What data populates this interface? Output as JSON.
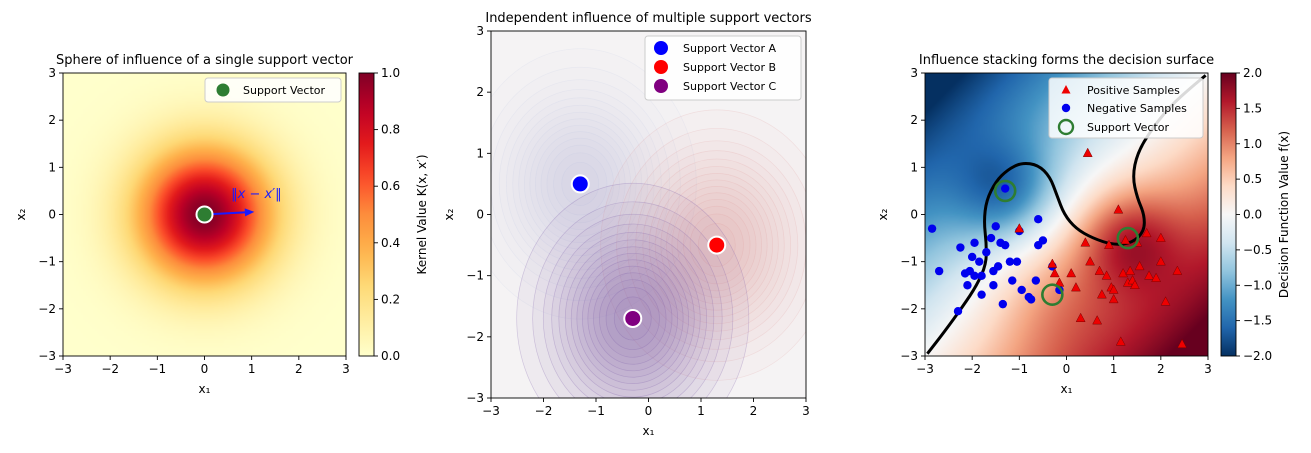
{
  "chart_data": [
    {
      "type": "heatmap",
      "title": "Sphere of influence of a single support vector",
      "xlabel": "x₁",
      "ylabel": "x₂",
      "xlim": [
        -3,
        3
      ],
      "ylim": [
        -3,
        3
      ],
      "xticks": [
        "−3",
        "−2",
        "−1",
        "0",
        "1",
        "2",
        "3"
      ],
      "yticks": [
        "−3",
        "−2",
        "−1",
        "0",
        "1",
        "2",
        "3"
      ],
      "colormap": "YlOrRd",
      "colorbar": {
        "label": "Kernel Value K(x, x′)",
        "range": [
          0,
          1
        ],
        "ticks": [
          "0.0",
          "0.2",
          "0.4",
          "0.6",
          "0.8",
          "1.0"
        ]
      },
      "legend": {
        "placement": "top-right",
        "entries": [
          "Support Vector"
        ]
      },
      "support_vector": {
        "x": 0,
        "y": 0,
        "color": "#2e7d32"
      },
      "arrow": {
        "from": [
          0,
          0
        ],
        "to": [
          0.95,
          0.05
        ],
        "label": "‖x − x′‖",
        "color": "#1a1aff"
      },
      "gamma": 0.5
    },
    {
      "type": "contour",
      "title": "Independent influence of multiple support vectors",
      "xlabel": "x₁",
      "ylabel": "x₂",
      "xlim": [
        -3,
        3
      ],
      "ylim": [
        -3,
        3
      ],
      "xticks": [
        "−3",
        "−2",
        "−1",
        "0",
        "1",
        "2",
        "3"
      ],
      "yticks": [
        "−3",
        "−2",
        "−1",
        "0",
        "1",
        "2",
        "3"
      ],
      "legend": {
        "placement": "top-right"
      },
      "series": [
        {
          "name": "Support Vector A",
          "x": -1.3,
          "y": 0.5,
          "color": "#0000ff",
          "tint": "#8fa0d8",
          "strength": 0.35
        },
        {
          "name": "Support Vector B",
          "x": 1.3,
          "y": -0.5,
          "color": "#ff0000",
          "tint": "#e08a8a",
          "strength": 0.65
        },
        {
          "name": "Support Vector C",
          "x": -0.3,
          "y": -1.7,
          "color": "#800080",
          "tint": "#7a58a8",
          "strength": 1.0
        }
      ]
    },
    {
      "type": "scatter",
      "title": "Influence stacking forms the decision surface",
      "xlabel": "x₁",
      "ylabel": "x₂",
      "xlim": [
        -3,
        3
      ],
      "ylim": [
        -3,
        3
      ],
      "xticks": [
        "−3",
        "−2",
        "−1",
        "0",
        "1",
        "2",
        "3"
      ],
      "yticks": [
        "−3",
        "−2",
        "−1",
        "0",
        "1",
        "2",
        "3"
      ],
      "colormap": "RdBu_r",
      "colorbar": {
        "label": "Decision Function Value f(x)",
        "range": [
          -2,
          2
        ],
        "ticks": [
          "−2.0",
          "−1.5",
          "−1.0",
          "−0.5",
          "0.0",
          "0.5",
          "1.0",
          "1.5",
          "2.0"
        ]
      },
      "legend": {
        "placement": "top-right",
        "entries": [
          "Positive Samples",
          "Negative Samples",
          "Support Vector"
        ]
      },
      "support_vectors": [
        {
          "x": -1.3,
          "y": 0.5
        },
        {
          "x": 1.3,
          "y": -0.5
        },
        {
          "x": -0.3,
          "y": -1.7
        }
      ],
      "positive_samples": [
        [
          -1.0,
          -0.3
        ],
        [
          -0.3,
          -1.05
        ],
        [
          -0.25,
          -1.25
        ],
        [
          -0.15,
          -1.45
        ],
        [
          0.1,
          -1.25
        ],
        [
          0.2,
          -1.55
        ],
        [
          0.4,
          -0.6
        ],
        [
          0.45,
          1.3
        ],
        [
          0.3,
          -2.2
        ],
        [
          0.5,
          -1.0
        ],
        [
          0.65,
          -2.25
        ],
        [
          0.7,
          -1.2
        ],
        [
          0.85,
          -1.3
        ],
        [
          0.9,
          -0.65
        ],
        [
          0.95,
          -1.55
        ],
        [
          1.0,
          -1.6
        ],
        [
          1.0,
          -1.8
        ],
        [
          1.1,
          0.1
        ],
        [
          1.15,
          -2.7
        ],
        [
          1.2,
          -1.25
        ],
        [
          1.3,
          -1.45
        ],
        [
          1.35,
          -1.2
        ],
        [
          1.4,
          -1.4
        ],
        [
          1.45,
          -1.5
        ],
        [
          1.5,
          -0.6
        ],
        [
          1.55,
          -1.1
        ],
        [
          1.7,
          -0.4
        ],
        [
          1.75,
          -1.3
        ],
        [
          2.0,
          -1.0
        ],
        [
          2.0,
          -0.5
        ],
        [
          2.1,
          -1.85
        ],
        [
          2.35,
          -1.2
        ],
        [
          2.45,
          -2.75
        ],
        [
          0.75,
          -1.7
        ],
        [
          1.25,
          -0.55
        ],
        [
          1.9,
          -1.35
        ]
      ],
      "negative_samples": [
        [
          -2.85,
          -0.3
        ],
        [
          -2.7,
          -1.2
        ],
        [
          -2.3,
          -2.05
        ],
        [
          -2.25,
          -0.7
        ],
        [
          -2.1,
          -1.5
        ],
        [
          -2.05,
          -1.2
        ],
        [
          -2.0,
          -0.9
        ],
        [
          -1.95,
          -1.3
        ],
        [
          -1.95,
          -0.6
        ],
        [
          -1.85,
          -1.0
        ],
        [
          -1.8,
          -1.3
        ],
        [
          -1.8,
          -1.7
        ],
        [
          -1.7,
          -0.8
        ],
        [
          -1.6,
          -0.5
        ],
        [
          -1.55,
          -1.2
        ],
        [
          -1.55,
          -1.5
        ],
        [
          -1.5,
          -0.25
        ],
        [
          -1.45,
          -1.1
        ],
        [
          -1.4,
          -0.6
        ],
        [
          -1.35,
          -1.9
        ],
        [
          -1.3,
          -0.65
        ],
        [
          -1.3,
          0.55
        ],
        [
          -1.2,
          -1.0
        ],
        [
          -1.15,
          -1.4
        ],
        [
          -1.05,
          -1.0
        ],
        [
          -1.0,
          -0.35
        ],
        [
          -0.95,
          -1.6
        ],
        [
          -0.8,
          -1.75
        ],
        [
          -0.75,
          -1.8
        ],
        [
          -0.65,
          -1.4
        ],
        [
          -0.6,
          -0.65
        ],
        [
          -0.5,
          -0.55
        ],
        [
          -0.6,
          -0.1
        ],
        [
          -0.3,
          -1.1
        ],
        [
          -0.15,
          -1.6
        ],
        [
          -2.15,
          -1.25
        ]
      ],
      "decision_boundary": [
        [
          -2.95,
          -2.95
        ],
        [
          -2.6,
          -2.5
        ],
        [
          -2.2,
          -1.95
        ],
        [
          -1.9,
          -1.5
        ],
        [
          -1.7,
          -1.05
        ],
        [
          -1.7,
          -0.6
        ],
        [
          -1.75,
          -0.15
        ],
        [
          -1.7,
          0.3
        ],
        [
          -1.5,
          0.7
        ],
        [
          -1.25,
          0.95
        ],
        [
          -0.95,
          1.1
        ],
        [
          -0.6,
          1.05
        ],
        [
          -0.35,
          0.8
        ],
        [
          -0.2,
          0.4
        ],
        [
          -0.05,
          0.0
        ],
        [
          0.2,
          -0.3
        ],
        [
          0.55,
          -0.5
        ],
        [
          1.0,
          -0.65
        ],
        [
          1.4,
          -0.6
        ],
        [
          1.65,
          -0.35
        ],
        [
          1.65,
          0.0
        ],
        [
          1.5,
          0.35
        ],
        [
          1.4,
          0.8
        ],
        [
          1.5,
          1.3
        ],
        [
          1.8,
          1.8
        ],
        [
          2.2,
          2.3
        ],
        [
          2.65,
          2.7
        ],
        [
          2.95,
          2.95
        ]
      ]
    }
  ]
}
